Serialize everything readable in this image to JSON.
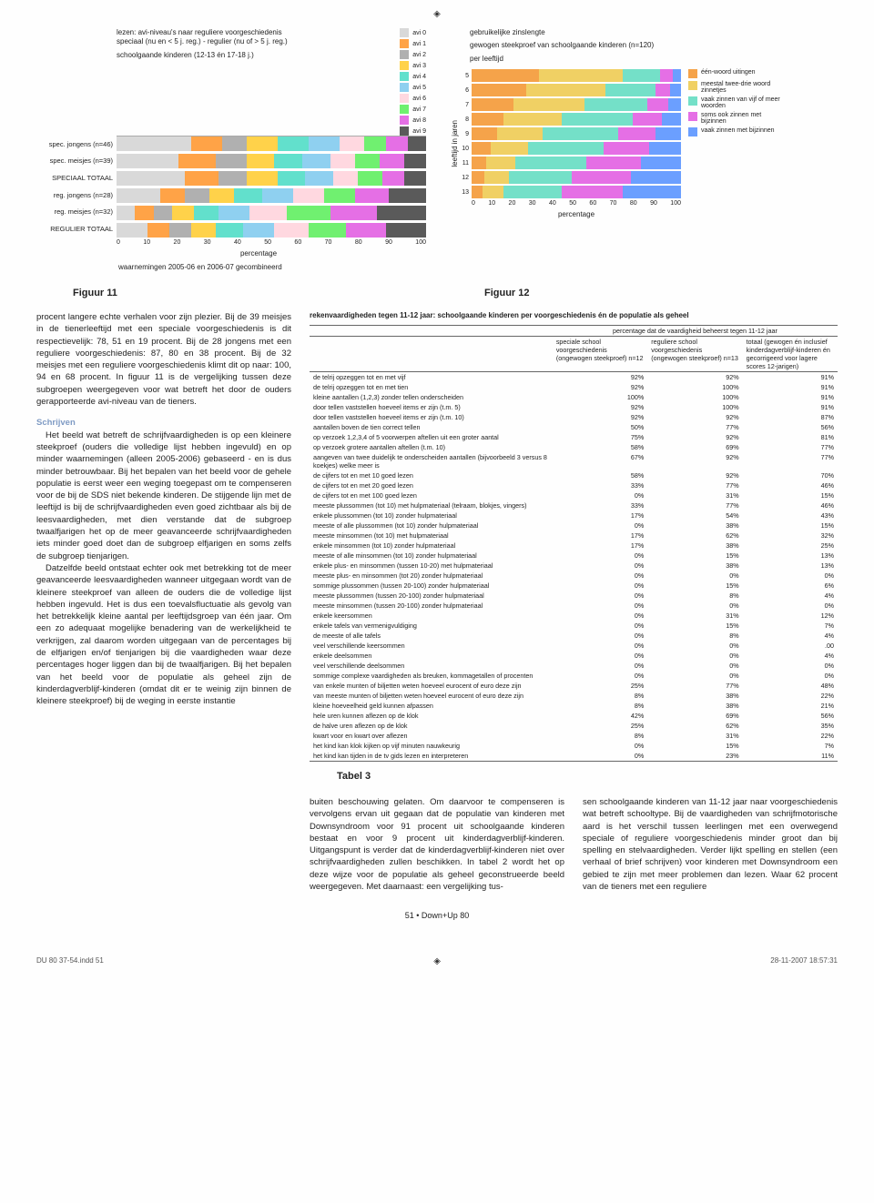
{
  "crop_mark": "◈",
  "chart11": {
    "title1": "lezen: avi-niveau's naar reguliere voorgeschiedenis",
    "title2": "speciaal (nu en < 5 j. reg.) - regulier (nu of > 5 j. reg.)",
    "title3": "schoolgaande kinderen (12-13 én 17-18 j.)",
    "x_axis_label": "percentage",
    "obs_note": "waarnemingen 2005-06 en 2006-07 gecombineerd",
    "y_labels": [
      "spec. jongens (n=46)",
      "spec. meisjes (n=39)",
      "SPECIAAL TOTAAL",
      "reg. jongens (n=28)",
      "reg. meisjes (n=32)",
      "REGULIER TOTAAL"
    ],
    "x_ticks": [
      "0",
      "10",
      "20",
      "30",
      "40",
      "50",
      "60",
      "70",
      "80",
      "90",
      "100"
    ],
    "avi_legend": [
      "avi 0",
      "avi 1",
      "avi 2",
      "avi 3",
      "avi 4",
      "avi 5",
      "avi 6",
      "avi 7",
      "avi 8",
      "avi 9"
    ],
    "avi_colors": [
      "#d9d9d9",
      "#ffa347",
      "#b0b0b0",
      "#ffd24a",
      "#62e0cc",
      "#8fd0f0",
      "#ffd8e0",
      "#70f070",
      "#e56fe5",
      "#5a5a5a"
    ],
    "bars": [
      [
        24,
        10,
        8,
        10,
        10,
        10,
        8,
        7,
        7,
        6
      ],
      [
        20,
        12,
        10,
        9,
        9,
        9,
        8,
        8,
        8,
        7
      ],
      [
        22,
        11,
        9,
        10,
        9,
        9,
        8,
        8,
        7,
        7
      ],
      [
        14,
        8,
        8,
        8,
        9,
        10,
        10,
        10,
        11,
        12
      ],
      [
        6,
        6,
        6,
        7,
        8,
        10,
        12,
        14,
        15,
        16
      ],
      [
        10,
        7,
        7,
        8,
        9,
        10,
        11,
        12,
        13,
        13
      ]
    ]
  },
  "chart12": {
    "title1": "gebruikelijke zinslengte",
    "title2": "gewogen steekproef van schoolgaande kinderen (n=120)",
    "title3": "per leeftijd",
    "y_axis": "leeftijd in jaren",
    "x_axis": "percentage",
    "ages": [
      "5",
      "6",
      "7",
      "8",
      "9",
      "10",
      "11",
      "12",
      "13"
    ],
    "x_ticks": [
      "0",
      "10",
      "20",
      "30",
      "40",
      "50",
      "60",
      "70",
      "80",
      "90",
      "100"
    ],
    "cat_labels": [
      "één-woord uitingen",
      "meestal twee-drie woord zinnetjes",
      "vaak zinnen van vijf of meer woorden",
      "soms ook zinnen met bijzinnen",
      "vaak zinnen met bijzinnen"
    ],
    "cat_colors": [
      "#f5a34a",
      "#f0d064",
      "#74e0c8",
      "#e56fe5",
      "#6b9fff"
    ],
    "bars": [
      [
        32,
        40,
        18,
        6,
        4
      ],
      [
        26,
        38,
        24,
        7,
        5
      ],
      [
        20,
        34,
        30,
        10,
        6
      ],
      [
        15,
        28,
        34,
        14,
        9
      ],
      [
        12,
        22,
        36,
        18,
        12
      ],
      [
        9,
        18,
        36,
        22,
        15
      ],
      [
        7,
        14,
        34,
        26,
        19
      ],
      [
        6,
        12,
        30,
        28,
        24
      ],
      [
        5,
        10,
        28,
        29,
        28
      ]
    ]
  },
  "figcaps": {
    "f11": "Figuur 11",
    "f12": "Figuur 12"
  },
  "body_left": {
    "p1": "procent langere echte verhalen voor zijn plezier. Bij de 39 meisjes in de tienerleeftijd met een speciale voorgeschiedenis is dit respectievelijk: 78, 51 en 19 procent. Bij de 28 jongens met een reguliere voorgeschiedenis: 87, 80 en 38 procent. Bij de 32 meisjes met een reguliere voorgeschiedenis klimt dit op naar: 100, 94 en 68 procent. In figuur 11 is de vergelijking tussen deze subgroepen weergegeven voor wat betreft het door de ouders gerapporteerde avi-niveau van de tieners.",
    "h_schrijven": "Schrijven",
    "p2": "Het beeld wat betreft de schrijfvaardigheden is op een kleinere steekproef (ouders die volledige lijst hebben ingevuld) en op minder waarnemingen (alleen 2005-2006) gebaseerd - en is dus minder betrouwbaar. Bij het bepalen van het beeld voor de gehele populatie is eerst weer een weging toegepast om te compenseren voor de bij de SDS niet bekende kinderen. De stijgende lijn met de leeftijd is bij de schrijfvaardigheden even goed zichtbaar als bij de leesvaardigheden, met dien verstande dat de subgroep twaalfjarigen het op de meer geavanceerde schrijfvaardigheden iets minder goed doet dan de subgroep elfjarigen en soms zelfs de subgroep tienjarigen.",
    "p3": "Datzelfde beeld ontstaat echter ook met betrekking tot de meer geavanceerde leesvaardigheden wanneer uitgegaan wordt van de kleinere steekproef van alleen de ouders die de volledige lijst hebben ingevuld. Het is dus een toevalsfluctuatie als gevolg van het betrekkelijk kleine aantal per leeftijdsgroep van één jaar. Om een zo adequaat mogelijke benadering van de werkelijkheid te verkrijgen, zal daarom worden uitgegaan van de percentages bij de elfjarigen en/of tienjarigen bij die vaardigheden waar deze percentages hoger liggen dan bij de twaalfjarigen. Bij het bepalen van het beeld voor de populatie als geheel zijn de kinderdagverblijf-kinderen (omdat dit er te weinig zijn binnen de kleinere steekproef) bij de weging in eerste instantie"
  },
  "table3": {
    "title": "rekenvaardigheden tegen 11-12 jaar: schoolgaande kinderen per voorgeschiedenis én de populatie als geheel",
    "super_head": "percentage dat de vaardigheid beheerst tegen 11-12 jaar",
    "cols": [
      "speciale school voorgeschiedenis (ongewogen steekproef) n=12",
      "reguliere school voorgeschiedenis (ongewogen steekproef) n=13",
      "totaal (gewogen én inclusief kinderdagverblijf-kinderen én gecorrigeerd voor lagere scores 12-jarigen)"
    ],
    "rows": [
      [
        "de telrij opzeggen tot en met vijf",
        "92%",
        "92%",
        "91%"
      ],
      [
        "de telrij opzeggen tot en met tien",
        "92%",
        "100%",
        "91%"
      ],
      [
        "kleine aantallen (1,2,3) zonder tellen onderscheiden",
        "100%",
        "100%",
        "91%"
      ],
      [
        "door tellen vaststellen hoeveel items er zijn (t.m. 5)",
        "92%",
        "100%",
        "91%"
      ],
      [
        "door tellen vaststellen hoeveel items er zijn (t.m. 10)",
        "92%",
        "92%",
        "87%"
      ],
      [
        "aantallen boven de tien correct tellen",
        "50%",
        "77%",
        "56%"
      ],
      [
        "op verzoek 1,2,3,4 of 5 voorwerpen aftellen uit een groter aantal",
        "75%",
        "92%",
        "81%"
      ],
      [
        "op verzoek grotere aantallen aftellen (t.m. 10)",
        "58%",
        "69%",
        "77%"
      ],
      [
        "aangeven van twee duidelijk te onderscheiden aantallen (bijvoorbeeld 3 versus 8 koekjes) welke meer is",
        "67%",
        "92%",
        "77%"
      ],
      [
        "de cijfers tot en met 10 goed lezen",
        "58%",
        "92%",
        "70%"
      ],
      [
        "de cijfers tot en met 20 goed lezen",
        "33%",
        "77%",
        "46%"
      ],
      [
        "de cijfers tot en met 100 goed lezen",
        "0%",
        "31%",
        "15%"
      ],
      [
        "meeste plussommen (tot 10) met hulpmateriaal (telraam, blokjes, vingers)",
        "33%",
        "77%",
        "46%"
      ],
      [
        "enkele plussommen (tot 10) zonder hulpmateriaal",
        "17%",
        "54%",
        "43%"
      ],
      [
        "meeste of alle plussommen (tot 10) zonder hulpmateriaal",
        "0%",
        "38%",
        "15%"
      ],
      [
        "meeste minsommen (tot 10) met hulpmateriaal",
        "17%",
        "62%",
        "32%"
      ],
      [
        "enkele minsommen (tot 10) zonder hulpmateriaal",
        "17%",
        "38%",
        "25%"
      ],
      [
        "meeste of alle minsommen (tot 10) zonder hulpmateriaal",
        "0%",
        "15%",
        "13%"
      ],
      [
        "enkele plus- en minsommen (tussen 10-20) met hulpmateriaal",
        "0%",
        "38%",
        "13%"
      ],
      [
        "meeste plus- en minsommen (tot 20) zonder hulpmateriaal",
        "0%",
        "0%",
        "0%"
      ],
      [
        "sommige plussommen (tussen 20-100) zonder hulpmateriaal",
        "0%",
        "15%",
        "6%"
      ],
      [
        "meeste plussommen (tussen 20-100) zonder hulpmateriaal",
        "0%",
        "8%",
        "4%"
      ],
      [
        "meeste minsommen (tussen 20-100) zonder hulpmateriaal",
        "0%",
        "0%",
        "0%"
      ],
      [
        "enkele keersommen",
        "0%",
        "31%",
        "12%"
      ],
      [
        "enkele tafels van vermenigvuldiging",
        "0%",
        "15%",
        "7%"
      ],
      [
        "de meeste of alle tafels",
        "0%",
        "8%",
        "4%"
      ],
      [
        "veel verschillende keersommen",
        "0%",
        "0%",
        ".00"
      ],
      [
        "enkele deelsommen",
        "0%",
        "0%",
        "4%"
      ],
      [
        "veel verschillende deelsommen",
        "0%",
        "0%",
        "0%"
      ],
      [
        "sommige complexe vaardigheden als breuken, kommagetallen of procenten",
        "0%",
        "0%",
        "0%"
      ],
      [
        "van enkele munten of biljetten weten hoeveel eurocent of euro deze zijn",
        "25%",
        "77%",
        "48%"
      ],
      [
        "van meeste munten of biljetten weten hoeveel eurocent of euro deze zijn",
        "8%",
        "38%",
        "22%"
      ],
      [
        "kleine hoeveelheid geld kunnen afpassen",
        "8%",
        "38%",
        "21%"
      ],
      [
        "hele uren kunnen aflezen op de klok",
        "42%",
        "69%",
        "56%"
      ],
      [
        "de halve uren aflezen op de klok",
        "25%",
        "62%",
        "35%"
      ],
      [
        "kwart voor en kwart over aflezen",
        "8%",
        "31%",
        "22%"
      ],
      [
        "het kind kan klok kijken op vijf minuten nauwkeurig",
        "0%",
        "15%",
        "7%"
      ],
      [
        "het kind kan tijden in de tv gids lezen en interpreteren",
        "0%",
        "23%",
        "11%"
      ]
    ],
    "caption": "Tabel 3"
  },
  "lower": {
    "c1": "buiten beschouwing gelaten. Om daarvoor te compenseren is vervolgens ervan uit gegaan dat de populatie van kinderen met Downsyndroom voor 91 procent uit schoolgaande kinderen bestaat en voor 9 procent uit kinderdagverblijf-kinderen. Uitgangspunt is verder dat de kinderdagverblijf-kinderen niet over schrijfvaardigheden zullen beschikken. In tabel 2 wordt het op deze wijze voor de populatie als geheel geconstrueerde beeld weergegeven. Met daarnaast: een vergelijking tus-",
    "c2": "sen schoolgaande kinderen van 11-12 jaar naar voorgeschiedenis wat betreft schooltype. Bij de vaardigheden van schrijfmotorische aard is het verschil tussen leerlingen met een overwegend speciale of reguliere voorgeschiedenis minder groot dan bij spelling en stelvaardigheden. Verder lijkt spelling en stellen (een verhaal of brief schrijven) voor kinderen met Downsyndroom een gebied te zijn met meer problemen dan lezen. Waar 62 procent van de tieners met een reguliere"
  },
  "page_foot": "51 • Down+Up 80",
  "footer": {
    "left": "DU 80 37-54.indd   51",
    "right": "28-11-2007   18:57:31"
  }
}
